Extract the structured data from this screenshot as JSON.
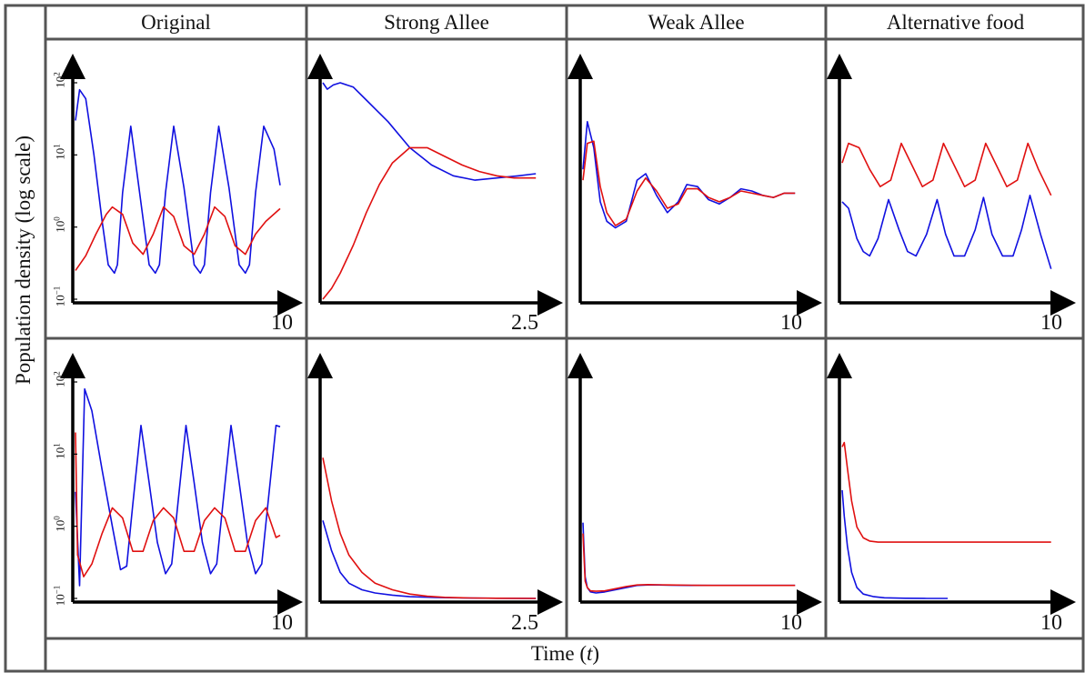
{
  "figure": {
    "ylabel": "Population density (log scale)",
    "xlabel_text": "Time (",
    "xlabel_var": "t",
    "xlabel_close": ")",
    "columns": [
      "Original",
      "Strong Allee",
      "Weak Allee",
      "Alternative food"
    ],
    "x_end_labels": [
      "10",
      "2.5",
      "10",
      "10"
    ]
  },
  "chart_data": [
    {
      "type": "line",
      "panel": "top-Original",
      "title": "Original",
      "y_scale": "log",
      "ylim": [
        0.1,
        100
      ],
      "xlim": [
        0,
        10
      ],
      "yticks": [
        "10^-1",
        "10^0",
        "10^1",
        "10^2"
      ],
      "series": [
        {
          "color": "#1010e0",
          "x": [
            0,
            0.2,
            0.5,
            0.9,
            1.3,
            1.6,
            1.9,
            2.05,
            2.3,
            2.7,
            3.1,
            3.6,
            3.9,
            4.1,
            4.4,
            4.8,
            5.3,
            5.8,
            6.1,
            6.3,
            6.6,
            7.0,
            7.5,
            8.0,
            8.3,
            8.5,
            8.8,
            9.2,
            9.7,
            10
          ],
          "y": [
            30,
            80,
            60,
            10,
            1.2,
            0.3,
            0.23,
            0.3,
            3,
            25,
            3.5,
            0.3,
            0.23,
            0.3,
            3,
            25,
            3.5,
            0.3,
            0.23,
            0.3,
            3,
            25,
            3.5,
            0.3,
            0.23,
            0.3,
            3,
            25,
            12,
            3.8
          ]
        },
        {
          "color": "#e01010",
          "x": [
            0,
            0.5,
            1.0,
            1.5,
            1.8,
            2.3,
            2.8,
            3.3,
            3.8,
            4.3,
            4.8,
            5.3,
            5.8,
            6.3,
            6.8,
            7.3,
            7.8,
            8.3,
            8.8,
            9.3,
            10
          ],
          "y": [
            0.25,
            0.4,
            0.8,
            1.5,
            1.9,
            1.5,
            0.6,
            0.42,
            0.8,
            1.9,
            1.4,
            0.55,
            0.42,
            0.8,
            1.9,
            1.4,
            0.55,
            0.42,
            0.8,
            1.2,
            1.8
          ]
        }
      ]
    },
    {
      "type": "line",
      "panel": "top-Strong Allee",
      "title": "Strong Allee",
      "y_scale": "log",
      "xlim": [
        0,
        2.5
      ],
      "series": [
        {
          "color": "#1010e0",
          "x": [
            0,
            0.05,
            0.12,
            0.2,
            0.35,
            0.5,
            0.75,
            1.0,
            1.25,
            1.5,
            1.75,
            2.0,
            2.25,
            2.45
          ],
          "y": [
            1.0,
            0.97,
            0.99,
            1.0,
            0.98,
            0.92,
            0.82,
            0.7,
            0.62,
            0.57,
            0.55,
            0.56,
            0.57,
            0.58
          ]
        },
        {
          "color": "#e01010",
          "x": [
            0,
            0.1,
            0.2,
            0.35,
            0.5,
            0.65,
            0.8,
            1.0,
            1.2,
            1.4,
            1.6,
            1.8,
            2.0,
            2.2,
            2.45
          ],
          "y": [
            0.0,
            0.05,
            0.12,
            0.25,
            0.4,
            0.53,
            0.63,
            0.7,
            0.7,
            0.66,
            0.62,
            0.59,
            0.57,
            0.56,
            0.56
          ]
        }
      ]
    },
    {
      "type": "line",
      "panel": "top-Weak Allee",
      "title": "Weak Allee",
      "y_scale": "log",
      "xlim": [
        0,
        10
      ],
      "series": [
        {
          "color": "#1010e0",
          "x": [
            0,
            0.2,
            0.5,
            0.8,
            1.1,
            1.5,
            2.0,
            2.5,
            2.9,
            3.4,
            3.9,
            4.4,
            4.8,
            5.3,
            5.8,
            6.3,
            6.8,
            7.3,
            7.8,
            8.3,
            8.8,
            9.3,
            9.8
          ],
          "y": [
            0.6,
            0.82,
            0.7,
            0.45,
            0.36,
            0.33,
            0.36,
            0.55,
            0.58,
            0.48,
            0.4,
            0.45,
            0.53,
            0.52,
            0.46,
            0.44,
            0.47,
            0.51,
            0.5,
            0.48,
            0.47,
            0.49,
            0.49
          ]
        },
        {
          "color": "#e01010",
          "x": [
            0,
            0.2,
            0.5,
            0.8,
            1.1,
            1.5,
            2.0,
            2.5,
            2.9,
            3.4,
            3.9,
            4.4,
            4.8,
            5.3,
            5.8,
            6.3,
            6.8,
            7.3,
            7.8,
            8.3,
            8.8,
            9.3,
            9.8
          ],
          "y": [
            0.55,
            0.72,
            0.73,
            0.52,
            0.4,
            0.34,
            0.37,
            0.5,
            0.56,
            0.5,
            0.42,
            0.44,
            0.51,
            0.51,
            0.47,
            0.45,
            0.47,
            0.5,
            0.49,
            0.48,
            0.47,
            0.49,
            0.49
          ]
        }
      ]
    },
    {
      "type": "line",
      "panel": "top-Alternative food",
      "title": "Alternative food",
      "y_scale": "log",
      "xlim": [
        0,
        10
      ],
      "series": [
        {
          "color": "#1010e0",
          "x": [
            0,
            0.3,
            0.7,
            1.0,
            1.3,
            1.7,
            2.2,
            2.7,
            3.1,
            3.5,
            4.0,
            4.5,
            4.9,
            5.3,
            5.8,
            6.3,
            6.7,
            7.1,
            7.6,
            8.1,
            8.5,
            8.9,
            9.4,
            9.9
          ],
          "y": [
            0.45,
            0.42,
            0.28,
            0.22,
            0.2,
            0.28,
            0.46,
            0.32,
            0.22,
            0.2,
            0.3,
            0.46,
            0.3,
            0.2,
            0.2,
            0.32,
            0.47,
            0.3,
            0.2,
            0.2,
            0.32,
            0.48,
            0.3,
            0.14
          ]
        },
        {
          "color": "#e01010",
          "x": [
            0,
            0.3,
            0.8,
            1.3,
            1.8,
            2.3,
            2.8,
            3.3,
            3.8,
            4.3,
            4.8,
            5.3,
            5.8,
            6.3,
            6.8,
            7.3,
            7.8,
            8.3,
            8.8,
            9.3,
            9.9
          ],
          "y": [
            0.63,
            0.72,
            0.7,
            0.6,
            0.52,
            0.55,
            0.72,
            0.62,
            0.52,
            0.55,
            0.72,
            0.62,
            0.52,
            0.55,
            0.72,
            0.62,
            0.52,
            0.55,
            0.72,
            0.6,
            0.48
          ]
        }
      ]
    },
    {
      "type": "line",
      "panel": "bottom-Original",
      "title": "Original",
      "y_scale": "log",
      "ylim": [
        0.1,
        100
      ],
      "xlim": [
        0,
        10
      ],
      "yticks": [
        "10^-1",
        "10^0",
        "10^1",
        "10^2"
      ],
      "series": [
        {
          "color": "#1010e0",
          "x": [
            0,
            0.2,
            0.45,
            0.8,
            1.3,
            1.8,
            2.2,
            2.5,
            2.8,
            3.2,
            3.6,
            4.0,
            4.4,
            4.7,
            5.0,
            5.4,
            5.8,
            6.2,
            6.6,
            6.9,
            7.2,
            7.6,
            8.0,
            8.4,
            8.8,
            9.1,
            9.4,
            9.8,
            10
          ],
          "y": [
            3,
            0.15,
            80,
            40,
            6,
            1,
            0.25,
            0.28,
            2,
            25,
            4,
            0.6,
            0.22,
            0.3,
            2,
            25,
            4,
            0.6,
            0.22,
            0.3,
            2,
            25,
            4,
            0.6,
            0.22,
            0.3,
            2,
            25,
            24
          ]
        },
        {
          "color": "#e01010",
          "x": [
            0,
            0.1,
            0.4,
            0.8,
            1.3,
            1.8,
            2.3,
            2.8,
            3.3,
            3.8,
            4.3,
            4.8,
            5.3,
            5.8,
            6.3,
            6.8,
            7.3,
            7.8,
            8.3,
            8.8,
            9.3,
            9.8,
            10
          ],
          "y": [
            20,
            0.4,
            0.2,
            0.3,
            0.8,
            1.8,
            1.3,
            0.45,
            0.45,
            1.2,
            1.8,
            1.3,
            0.45,
            0.45,
            1.2,
            1.8,
            1.3,
            0.45,
            0.45,
            1.2,
            1.8,
            0.7,
            0.75
          ]
        }
      ]
    },
    {
      "type": "line",
      "panel": "bottom-Strong Allee",
      "title": "Strong Allee",
      "y_scale": "log",
      "xlim": [
        0,
        2.5
      ],
      "series": [
        {
          "color": "#1010e0",
          "x": [
            0,
            0.1,
            0.2,
            0.3,
            0.45,
            0.6,
            0.8,
            1.0,
            1.3,
            1.6,
            2.0,
            2.45
          ],
          "y": [
            0.36,
            0.22,
            0.12,
            0.07,
            0.04,
            0.025,
            0.015,
            0.008,
            0.004,
            0.002,
            0.001,
            0.0
          ]
        },
        {
          "color": "#e01010",
          "x": [
            0,
            0.1,
            0.2,
            0.3,
            0.45,
            0.6,
            0.8,
            1.0,
            1.2,
            1.4,
            1.7,
            2.0,
            2.45
          ],
          "y": [
            0.65,
            0.45,
            0.3,
            0.2,
            0.12,
            0.07,
            0.04,
            0.02,
            0.01,
            0.005,
            0.002,
            0.001,
            0.0
          ]
        }
      ]
    },
    {
      "type": "line",
      "panel": "bottom-Weak Allee",
      "title": "Weak Allee",
      "y_scale": "log",
      "xlim": [
        0,
        10
      ],
      "series": [
        {
          "color": "#1010e0",
          "x": [
            0,
            0.1,
            0.2,
            0.35,
            0.6,
            1.0,
            1.5,
            2.0,
            2.5,
            3.0,
            3.5,
            4.0,
            5.0,
            6.0,
            7.0,
            8.0,
            9.0,
            9.8
          ],
          "y": [
            0.35,
            0.1,
            0.05,
            0.03,
            0.025,
            0.03,
            0.04,
            0.05,
            0.06,
            0.062,
            0.062,
            0.061,
            0.06,
            0.06,
            0.06,
            0.06,
            0.06,
            0.06
          ]
        },
        {
          "color": "#e01010",
          "x": [
            0,
            0.1,
            0.2,
            0.35,
            0.6,
            1.0,
            1.5,
            2.0,
            2.5,
            3.0,
            3.5,
            4.0,
            5.0,
            6.0,
            7.0,
            8.0,
            9.0,
            9.8
          ],
          "y": [
            0.3,
            0.08,
            0.05,
            0.035,
            0.033,
            0.035,
            0.045,
            0.055,
            0.062,
            0.064,
            0.063,
            0.062,
            0.061,
            0.06,
            0.06,
            0.06,
            0.06,
            0.06
          ]
        }
      ]
    },
    {
      "type": "line",
      "panel": "bottom-Alternative food",
      "title": "Alternative food",
      "y_scale": "log",
      "xlim": [
        0,
        10
      ],
      "series": [
        {
          "color": "#1010e0",
          "x": [
            0,
            0.1,
            0.25,
            0.45,
            0.7,
            1.0,
            1.5,
            2.0,
            3.0,
            4.0,
            5.0
          ],
          "y": [
            0.5,
            0.38,
            0.24,
            0.12,
            0.05,
            0.02,
            0.008,
            0.003,
            0.001,
            0.0,
            0.0
          ]
        },
        {
          "color": "#e01010",
          "x": [
            0,
            0.1,
            0.25,
            0.45,
            0.7,
            1.0,
            1.3,
            1.7,
            2.2,
            3.0,
            4.0,
            5.0,
            6.0,
            7.0,
            8.0,
            9.0,
            9.9
          ],
          "y": [
            0.7,
            0.72,
            0.6,
            0.45,
            0.33,
            0.28,
            0.265,
            0.26,
            0.26,
            0.26,
            0.26,
            0.26,
            0.26,
            0.26,
            0.26,
            0.26,
            0.26
          ]
        }
      ]
    }
  ]
}
